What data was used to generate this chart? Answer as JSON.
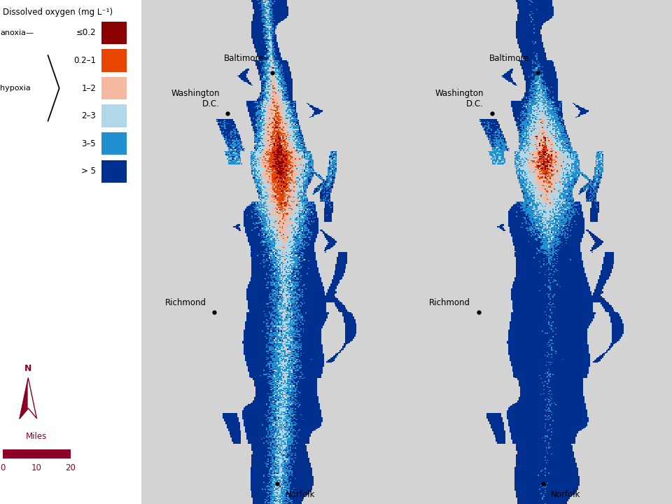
{
  "bg_color": "#ffffff",
  "land_color": "#d3d3d3",
  "legend_title": "Dissolved oxygen (mg L⁻¹)",
  "legend_items": [
    {
      "label": "≤0.2",
      "color": "#8B0000"
    },
    {
      "label": "0.2–1",
      "color": "#E84500"
    },
    {
      "label": "1–2",
      "color": "#F5B8A0"
    },
    {
      "label": "2–3",
      "color": "#B0D8E8"
    },
    {
      "label": "3–5",
      "color": "#2090D0"
    },
    {
      "label": "> 5",
      "color": "#00308F"
    }
  ],
  "north_arrow_color": "#8B0026",
  "scale_bar_color": "#8B0026",
  "miles_label": "Miles",
  "scale_ticks": [
    "0",
    "10",
    "20"
  ]
}
